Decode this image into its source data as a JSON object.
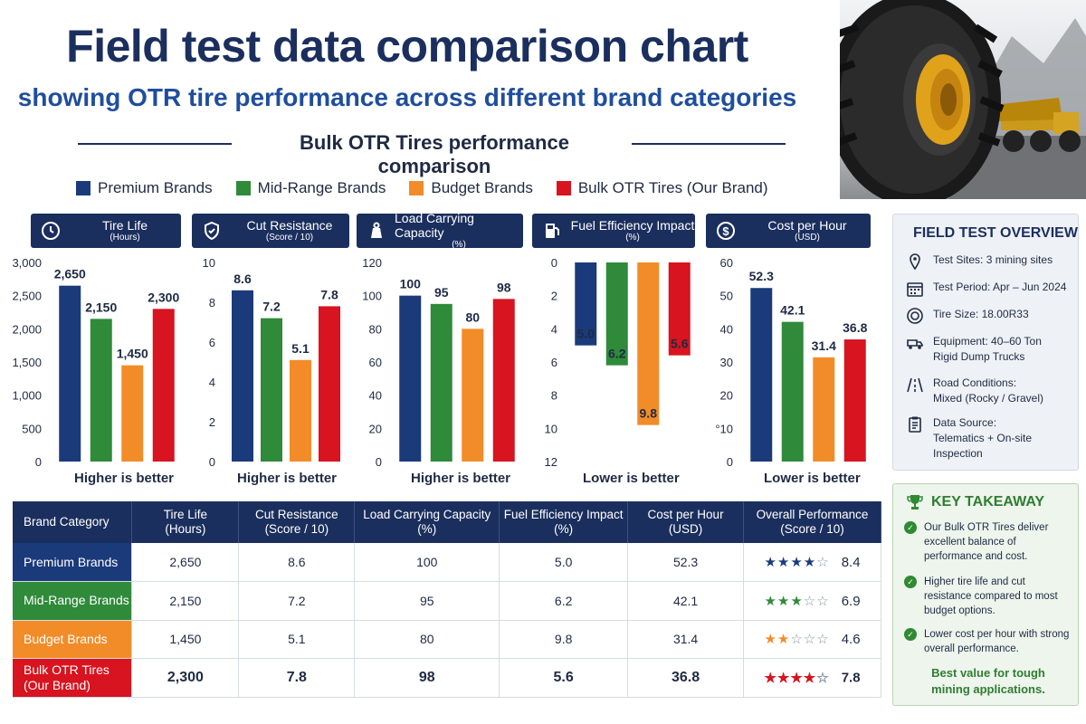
{
  "header": {
    "title": "Field test data comparison chart",
    "subtitle": "showing OTR tire performance across different brand categories",
    "section_title": "Bulk OTR Tires performance comparison"
  },
  "colors": {
    "premium": "#1b3a7a",
    "midrange": "#2f8a3a",
    "budget": "#f28c28",
    "ours": "#d7141f",
    "navy": "#1b2f5e"
  },
  "legend": [
    {
      "label": "Premium Brands",
      "color": "#1b3a7a"
    },
    {
      "label": "Mid-Range Brands",
      "color": "#2f8a3a"
    },
    {
      "label": "Budget Brands",
      "color": "#f28c28"
    },
    {
      "label": "Bulk OTR Tires (Our Brand)",
      "color": "#d7141f"
    }
  ],
  "chart_data": [
    {
      "type": "bar",
      "title": "Tire Life",
      "unit": "(Hours)",
      "icon": "clock-icon",
      "categories": [
        "Premium Brands",
        "Mid-Range Brands",
        "Budget Brands",
        "Bulk OTR Tires (Our Brand)"
      ],
      "values": [
        2650,
        2150,
        1450,
        2300
      ],
      "value_labels": [
        "2,650",
        "2,150",
        "1,450",
        "2,300"
      ],
      "ylim": [
        0,
        3000
      ],
      "yticks": [
        "0",
        "500",
        "1,000",
        "1,500",
        "2,000",
        "2,500",
        "3,000"
      ],
      "inverted": false,
      "note": "Higher is better"
    },
    {
      "type": "bar",
      "title": "Cut Resistance",
      "unit": "(Score / 10)",
      "icon": "shield-icon",
      "categories": [
        "Premium Brands",
        "Mid-Range Brands",
        "Budget Brands",
        "Bulk OTR Tires (Our Brand)"
      ],
      "values": [
        8.6,
        7.2,
        5.1,
        7.8
      ],
      "value_labels": [
        "8.6",
        "7.2",
        "5.1",
        "7.8"
      ],
      "ylim": [
        0,
        10
      ],
      "yticks": [
        "0",
        "2",
        "4",
        "6",
        "8",
        "10"
      ],
      "inverted": false,
      "note": "Higher is better"
    },
    {
      "type": "bar",
      "title": "Load Carrying Capacity",
      "unit": "(%)",
      "icon": "weight-icon",
      "categories": [
        "Premium Brands",
        "Mid-Range Brands",
        "Budget Brands",
        "Bulk OTR Tires (Our Brand)"
      ],
      "values": [
        100,
        95,
        80,
        98
      ],
      "value_labels": [
        "100",
        "95",
        "80",
        "98"
      ],
      "ylim": [
        0,
        120
      ],
      "yticks": [
        "0",
        "20",
        "40",
        "60",
        "80",
        "100",
        "120"
      ],
      "inverted": false,
      "note": "Higher is better"
    },
    {
      "type": "bar",
      "title": "Fuel Efficiency Impact",
      "unit": "(%)",
      "icon": "fuel-pump-icon",
      "categories": [
        "Premium Brands",
        "Mid-Range Brands",
        "Budget Brands",
        "Bulk OTR Tires (Our Brand)"
      ],
      "values": [
        5.0,
        6.2,
        9.8,
        5.6
      ],
      "value_labels": [
        "5.0",
        "6.2",
        "9.8",
        "5.6"
      ],
      "ylim": [
        0,
        12
      ],
      "yticks": [
        "0",
        "2",
        "4",
        "6",
        "8",
        "10",
        "12"
      ],
      "inverted": true,
      "note": "Lower is better"
    },
    {
      "type": "bar",
      "title": "Cost per Hour",
      "unit": "(USD)",
      "icon": "dollar-icon",
      "categories": [
        "Premium Brands",
        "Mid-Range Brands",
        "Budget Brands",
        "Bulk OTR Tires (Our Brand)"
      ],
      "values": [
        52.3,
        42.1,
        31.4,
        36.8
      ],
      "value_labels": [
        "52.3",
        "42.1",
        "31.4",
        "36.8"
      ],
      "ylim": [
        0,
        60
      ],
      "yticks": [
        "0",
        "°10",
        "20",
        "30",
        "40",
        "50",
        "60"
      ],
      "inverted": false,
      "note": "Lower is better"
    }
  ],
  "overview": {
    "title": "FIELD TEST OVERVIEW",
    "items": [
      {
        "icon": "location-pin-icon",
        "label": "Test Sites:",
        "value": "3 mining sites"
      },
      {
        "icon": "calendar-icon",
        "label": "Test Period:",
        "value": "Apr – Jun 2024"
      },
      {
        "icon": "tire-icon",
        "label": "Tire Size:",
        "value": "18.00R33"
      },
      {
        "icon": "truck-icon",
        "label": "Equipment:",
        "value": "40–60 Ton Rigid Dump Trucks"
      },
      {
        "icon": "road-icon",
        "label": "Road Conditions:",
        "value": "Mixed (Rocky / Gravel)"
      },
      {
        "icon": "clipboard-icon",
        "label": "Data Source:",
        "value": "Telematics + On-site Inspection"
      }
    ]
  },
  "takeaway": {
    "title": "KEY TAKEAWAY",
    "points": [
      "Our Bulk OTR Tires deliver excellent balance of performance and cost.",
      "Higher tire life and cut resistance compared to most budget options.",
      "Lower cost per hour with strong overall performance."
    ],
    "conclusion": "Best value for tough mining applications."
  },
  "table": {
    "columns": [
      {
        "title": "Brand Category",
        "unit": ""
      },
      {
        "title": "Tire Life",
        "unit": "(Hours)"
      },
      {
        "title": "Cut Resistance",
        "unit": "(Score / 10)"
      },
      {
        "title": "Load Carrying Capacity",
        "unit": "(%)"
      },
      {
        "title": "Fuel Efficiency Impact",
        "unit": "(%)"
      },
      {
        "title": "Cost per Hour",
        "unit": "(USD)"
      },
      {
        "title": "Overall Performance",
        "unit": "(Score / 10)"
      }
    ],
    "rows": [
      {
        "brand": "Premium Brands",
        "color": "#1b3a7a",
        "tire_life": "2,650",
        "cut_resistance": "8.6",
        "load_capacity": "100",
        "fuel_impact": "5.0",
        "cost_per_hour": "52.3",
        "stars": 4,
        "overall": "8.4"
      },
      {
        "brand": "Mid-Range Brands",
        "color": "#2f8a3a",
        "tire_life": "2,150",
        "cut_resistance": "7.2",
        "load_capacity": "95",
        "fuel_impact": "6.2",
        "cost_per_hour": "42.1",
        "stars": 3,
        "overall": "6.9"
      },
      {
        "brand": "Budget Brands",
        "color": "#f28c28",
        "tire_life": "1,450",
        "cut_resistance": "5.1",
        "load_capacity": "80",
        "fuel_impact": "9.8",
        "cost_per_hour": "31.4",
        "stars": 2,
        "overall": "4.6"
      },
      {
        "brand": "Bulk OTR Tires (Our Brand)",
        "brand_line1": "Bulk OTR Tires",
        "brand_line2": "(Our Brand)",
        "color": "#d7141f",
        "tire_life": "2,300",
        "cut_resistance": "7.8",
        "load_capacity": "98",
        "fuel_impact": "5.6",
        "cost_per_hour": "36.8",
        "stars": 4,
        "overall": "7.8"
      }
    ]
  }
}
